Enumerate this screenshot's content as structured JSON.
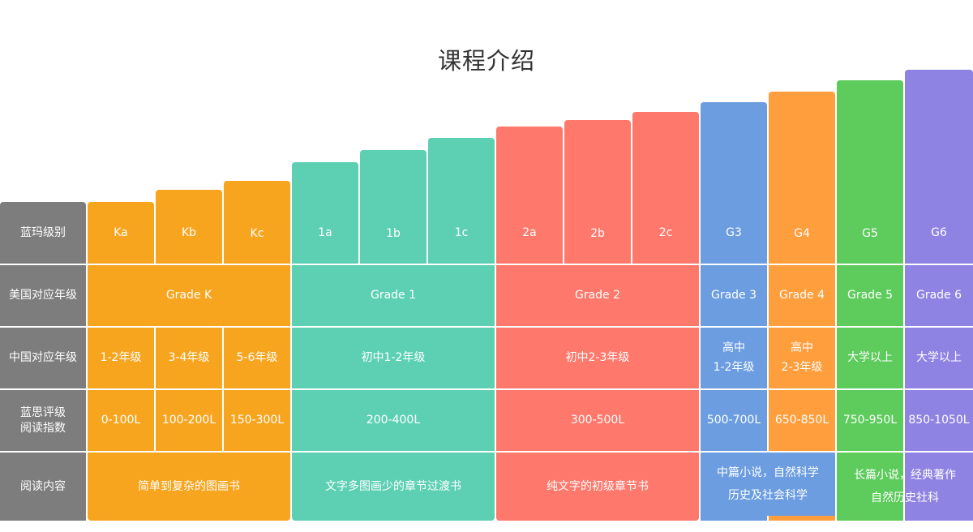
{
  "title": "课程介绍",
  "row_headers": [
    "蓝玛级别",
    "美国对应年级",
    "中国对应年级",
    "蓝思评级\n阅读指数",
    "阅读内容"
  ],
  "levels": [
    "Ka",
    "Kb",
    "Kc",
    "1a",
    "1b",
    "1c",
    "2a",
    "2b",
    "2c",
    "G3",
    "G4",
    "G5",
    "G6"
  ],
  "us_grades": [
    "Grade K",
    "Grade 1",
    "Grade 2",
    "Grade 3",
    "Grade 4",
    "Grade 5",
    "Grade 6"
  ],
  "china_grades": [
    "1-2年级",
    "3-4年级",
    "5-6年级",
    "初中1-2年级",
    "初中2-3年级",
    "高中\n1-2年级",
    "高中\n2-3年级",
    "大学以上",
    "大学以上"
  ],
  "lexile": [
    "0-100L",
    "100-200L",
    "150-300L",
    "200-400L",
    "300-500L",
    "500-700L",
    "650-850L",
    "750-950L",
    "850-1050L"
  ],
  "content": [
    "简单到复杂的图画书",
    "文字多图画少的章节过渡书",
    "纯文字的初级章节书",
    "中篇小说，自然科学\n历史及社会科学",
    "长篇小说，经典著作\n自然历史社科"
  ],
  "colors": {
    "header": "#7d7d7d",
    "orange": "#f7a51f",
    "teal": "#5dd0b4",
    "red": "#fe786b",
    "blue": "#6b9de0",
    "orange2": "#ff9e3c",
    "green": "#5ecb5d",
    "purple": "#8e83e3"
  }
}
